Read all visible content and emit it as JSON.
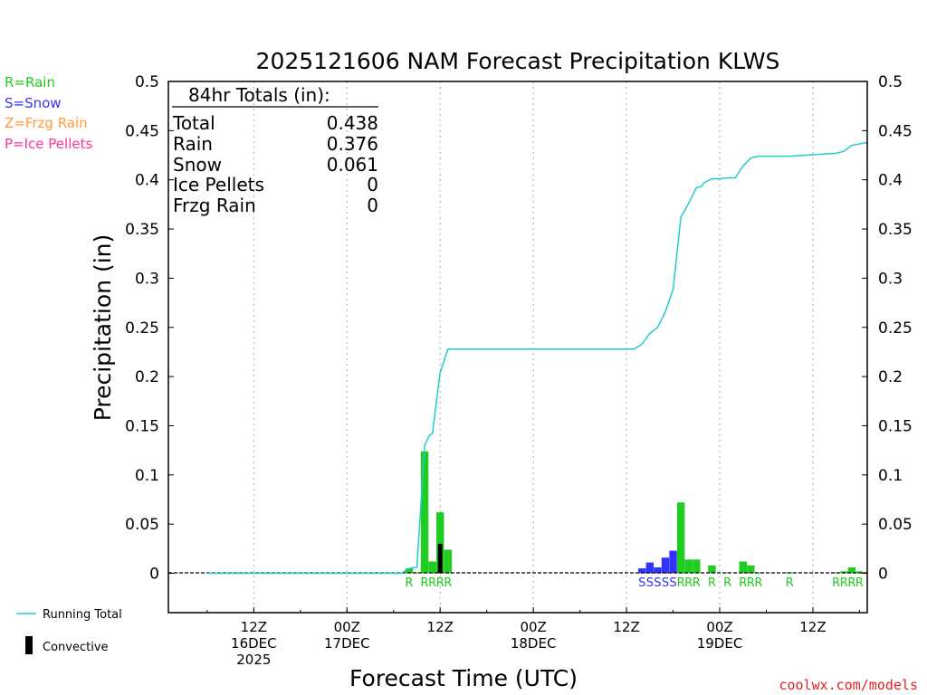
{
  "chart_data": {
    "type": "bar",
    "title": "2025121606 NAM Forecast Precipitation KLWS",
    "xlabel": "Forecast Time (UTC)",
    "ylabel": "Precipitation (in)",
    "ylim": [
      -0.04,
      0.5
    ],
    "xlim_hours": [
      -5,
      85
    ],
    "y_ticks": [
      {
        "v": 0.5,
        "label": "0.5"
      },
      {
        "v": 0.45,
        "label": "0.45"
      },
      {
        "v": 0.4,
        "label": "0.4"
      },
      {
        "v": 0.35,
        "label": "0.35"
      },
      {
        "v": 0.3,
        "label": "0.3"
      },
      {
        "v": 0.25,
        "label": "0.25"
      },
      {
        "v": 0.2,
        "label": "0.2"
      },
      {
        "v": 0.15,
        "label": "0.15"
      },
      {
        "v": 0.1,
        "label": "0.1"
      },
      {
        "v": 0.05,
        "label": "0.05"
      },
      {
        "v": 0,
        "label": "0"
      }
    ],
    "x_ticks": [
      {
        "h": 6,
        "lines": [
          "12Z",
          "16DEC",
          "2025"
        ]
      },
      {
        "h": 18,
        "lines": [
          "00Z",
          "17DEC"
        ]
      },
      {
        "h": 30,
        "lines": [
          "12Z"
        ]
      },
      {
        "h": 42,
        "lines": [
          "00Z",
          "18DEC"
        ]
      },
      {
        "h": 54,
        "lines": [
          "12Z"
        ]
      },
      {
        "h": 66,
        "lines": [
          "00Z",
          "19DEC"
        ]
      },
      {
        "h": 78,
        "lines": [
          "12Z"
        ]
      }
    ],
    "legend": [
      {
        "label": "R=Rain",
        "color": "#1fcc1f"
      },
      {
        "label": "S=Snow",
        "color": "#3333ff"
      },
      {
        "label": "Z=Frzg Rain",
        "color": "#ff9933"
      },
      {
        "label": "P=Ice Pellets",
        "color": "#ff3399"
      }
    ],
    "series_legend": {
      "running_total": "Running Total",
      "convective": "Convective"
    },
    "totals_box": {
      "heading": "84hr Totals (in):",
      "rows": [
        {
          "label": "Total",
          "value": "0.438"
        },
        {
          "label": "Rain",
          "value": "0.376"
        },
        {
          "label": "Snow",
          "value": "0.061"
        },
        {
          "label": "Ice Pellets",
          "value": "0"
        },
        {
          "label": "Frzg Rain",
          "value": "0"
        }
      ]
    },
    "bars": [
      {
        "h": 26,
        "value": 0.005,
        "type": "R"
      },
      {
        "h": 27,
        "value": 0.001,
        "type": "R"
      },
      {
        "h": 28,
        "value": 0.124,
        "type": "R"
      },
      {
        "h": 29,
        "value": 0.012,
        "type": "R"
      },
      {
        "h": 30,
        "value": 0.062,
        "type": "R"
      },
      {
        "h": 31,
        "value": 0.024,
        "type": "R"
      },
      {
        "h": 56,
        "value": 0.005,
        "type": "S"
      },
      {
        "h": 57,
        "value": 0.011,
        "type": "S"
      },
      {
        "h": 58,
        "value": 0.006,
        "type": "S"
      },
      {
        "h": 59,
        "value": 0.016,
        "type": "S"
      },
      {
        "h": 60,
        "value": 0.023,
        "type": "S"
      },
      {
        "h": 61,
        "value": 0.072,
        "type": "R"
      },
      {
        "h": 62,
        "value": 0.014,
        "type": "R"
      },
      {
        "h": 63,
        "value": 0.014,
        "type": "R"
      },
      {
        "h": 65,
        "value": 0.008,
        "type": "R"
      },
      {
        "h": 67,
        "value": 0.001,
        "type": "R"
      },
      {
        "h": 69,
        "value": 0.012,
        "type": "R"
      },
      {
        "h": 70,
        "value": 0.008,
        "type": "R"
      },
      {
        "h": 71,
        "value": 0.001,
        "type": "R"
      },
      {
        "h": 75,
        "value": 0.001,
        "type": "R"
      },
      {
        "h": 81,
        "value": 0.001,
        "type": "R"
      },
      {
        "h": 82,
        "value": 0.002,
        "type": "R"
      },
      {
        "h": 83,
        "value": 0.006,
        "type": "R"
      },
      {
        "h": 84,
        "value": 0.002,
        "type": "R"
      }
    ],
    "convective": [
      {
        "h": 30,
        "value": 0.03
      }
    ],
    "type_labels": [
      {
        "h": 26,
        "ch": "R"
      },
      {
        "h": 28,
        "ch": "R"
      },
      {
        "h": 29,
        "ch": "R"
      },
      {
        "h": 30,
        "ch": "R"
      },
      {
        "h": 31,
        "ch": "R"
      },
      {
        "h": 56,
        "ch": "S"
      },
      {
        "h": 57,
        "ch": "S"
      },
      {
        "h": 58,
        "ch": "S"
      },
      {
        "h": 59,
        "ch": "S"
      },
      {
        "h": 60,
        "ch": "S"
      },
      {
        "h": 61,
        "ch": "R"
      },
      {
        "h": 62,
        "ch": "R"
      },
      {
        "h": 63,
        "ch": "R"
      },
      {
        "h": 65,
        "ch": "R"
      },
      {
        "h": 67,
        "ch": "R"
      },
      {
        "h": 69,
        "ch": "R"
      },
      {
        "h": 70,
        "ch": "R"
      },
      {
        "h": 71,
        "ch": "R"
      },
      {
        "h": 75,
        "ch": "R"
      },
      {
        "h": 81,
        "ch": "R"
      },
      {
        "h": 82,
        "ch": "R"
      },
      {
        "h": 83,
        "ch": "R"
      },
      {
        "h": 84,
        "ch": "R"
      }
    ],
    "running_total": [
      {
        "h": 0,
        "v": 0
      },
      {
        "h": 25,
        "v": 0
      },
      {
        "h": 26,
        "v": 0.005
      },
      {
        "h": 27,
        "v": 0.006
      },
      {
        "h": 28,
        "v": 0.13
      },
      {
        "h": 28.6,
        "v": 0.14
      },
      {
        "h": 29,
        "v": 0.142
      },
      {
        "h": 30,
        "v": 0.204
      },
      {
        "h": 31,
        "v": 0.228
      },
      {
        "h": 55,
        "v": 0.228
      },
      {
        "h": 56,
        "v": 0.233
      },
      {
        "h": 57,
        "v": 0.244
      },
      {
        "h": 58,
        "v": 0.25
      },
      {
        "h": 59,
        "v": 0.266
      },
      {
        "h": 60,
        "v": 0.289
      },
      {
        "h": 61,
        "v": 0.362
      },
      {
        "h": 62,
        "v": 0.376
      },
      {
        "h": 63,
        "v": 0.392
      },
      {
        "h": 63.6,
        "v": 0.393
      },
      {
        "h": 64,
        "v": 0.397
      },
      {
        "h": 65,
        "v": 0.401
      },
      {
        "h": 66,
        "v": 0.401
      },
      {
        "h": 67,
        "v": 0.402
      },
      {
        "h": 68,
        "v": 0.402
      },
      {
        "h": 69,
        "v": 0.414
      },
      {
        "h": 70,
        "v": 0.422
      },
      {
        "h": 71,
        "v": 0.424
      },
      {
        "h": 75,
        "v": 0.424
      },
      {
        "h": 81,
        "v": 0.427
      },
      {
        "h": 82,
        "v": 0.429
      },
      {
        "h": 83,
        "v": 0.435
      },
      {
        "h": 85,
        "v": 0.438
      }
    ]
  },
  "colors": {
    "rain": "#1fcc1f",
    "snow": "#3333ff",
    "frzg": "#ff9933",
    "ice": "#ff3399",
    "running_total": "#22cccc",
    "convective": "#000000",
    "credit": "#dd2222"
  },
  "credit": "coolwx.com/models"
}
